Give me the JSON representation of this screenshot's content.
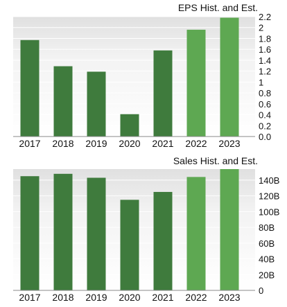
{
  "chart_data": [
    {
      "type": "bar",
      "title": "EPS Hist. and Est.",
      "categories": [
        "2017",
        "2018",
        "2019",
        "2020",
        "2021",
        "2022",
        "2023"
      ],
      "values": [
        1.77,
        1.29,
        1.19,
        0.41,
        1.58,
        1.96,
        2.18
      ],
      "estimate_flags": [
        false,
        false,
        false,
        false,
        false,
        true,
        true
      ],
      "ylim": [
        0,
        2.2
      ],
      "yticks": [
        {
          "value": 0.0,
          "label": "0.0"
        },
        {
          "value": 0.2,
          "label": "0.2"
        },
        {
          "value": 0.4,
          "label": "0.4"
        },
        {
          "value": 0.6,
          "label": "0.6"
        },
        {
          "value": 0.8,
          "label": "0.8"
        },
        {
          "value": 1.0,
          "label": "1"
        },
        {
          "value": 1.2,
          "label": "1.2"
        },
        {
          "value": 1.4,
          "label": "1.4"
        },
        {
          "value": 1.6,
          "label": "1.6"
        },
        {
          "value": 1.8,
          "label": "1.8"
        },
        {
          "value": 2.0,
          "label": "2"
        },
        {
          "value": 2.2,
          "label": "2.2"
        }
      ],
      "grid": true,
      "colors": {
        "historical": "#3f7b3d",
        "estimate": "#5ea852"
      }
    },
    {
      "type": "bar",
      "title": "Sales Hist. and Est.",
      "categories": [
        "2017",
        "2018",
        "2019",
        "2020",
        "2021",
        "2022",
        "2023"
      ],
      "values": [
        145,
        148,
        143,
        115,
        125,
        144,
        154
      ],
      "unit": "B",
      "estimate_flags": [
        false,
        false,
        false,
        false,
        false,
        true,
        true
      ],
      "ylim": [
        0,
        154
      ],
      "yticks": [
        {
          "value": 0,
          "label": "0"
        },
        {
          "value": 20,
          "label": "20B"
        },
        {
          "value": 40,
          "label": "40B"
        },
        {
          "value": 60,
          "label": "60B"
        },
        {
          "value": 80,
          "label": "80B"
        },
        {
          "value": 100,
          "label": "100B"
        },
        {
          "value": 120,
          "label": "120B"
        },
        {
          "value": 140,
          "label": "140B"
        }
      ],
      "grid": true,
      "colors": {
        "historical": "#3f7b3d",
        "estimate": "#5ea852"
      }
    }
  ]
}
